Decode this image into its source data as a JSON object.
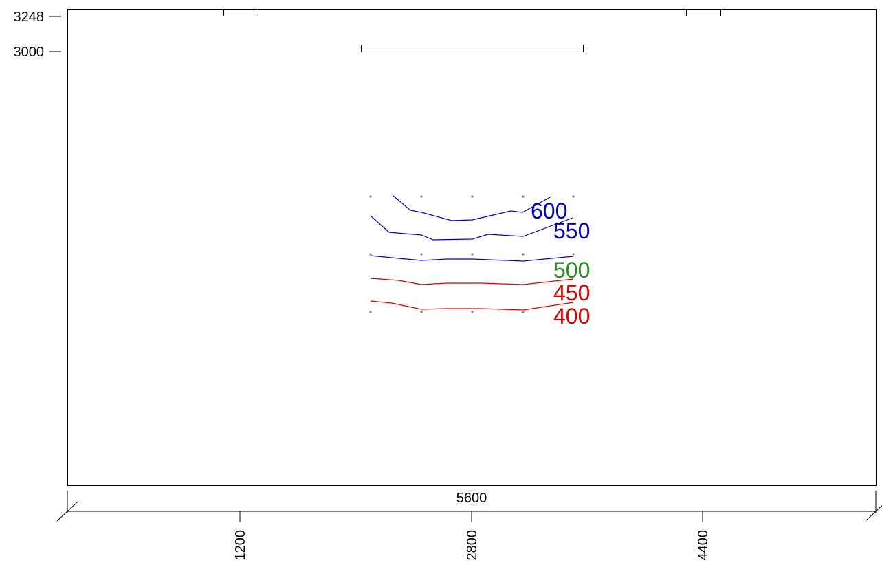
{
  "colors": {
    "frame": "#000000",
    "blue": "#0000cc",
    "green": "#2a8a2a",
    "red": "#dd0000",
    "point": "#808080"
  },
  "y_axis": {
    "ticks": [
      {
        "label": "3248"
      },
      {
        "label": "3000"
      }
    ]
  },
  "x_axis": {
    "dimension_label": "5600",
    "ticks": [
      {
        "label": "1200"
      },
      {
        "label": "2800"
      },
      {
        "label": "4400"
      }
    ]
  },
  "contours": [
    {
      "label": "600",
      "color": "blue"
    },
    {
      "label": "550",
      "color": "blue"
    },
    {
      "label": "500",
      "color": "green"
    },
    {
      "label": "450",
      "color": "red"
    },
    {
      "label": "400",
      "color": "red"
    }
  ]
}
